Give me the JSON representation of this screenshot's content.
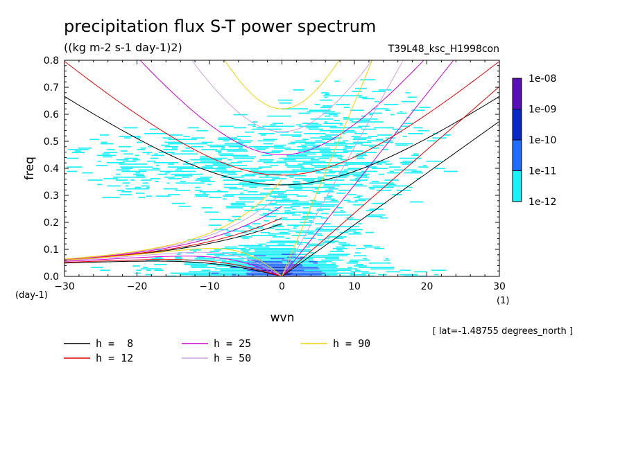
{
  "title": "precipitation flux S-T power spectrum",
  "units": "((kg m-2 s-1 day-1)2)",
  "dataset": "T39L48_ksc_H1998con",
  "lat_note": "[ lat=-1.48755 degrees_north ]",
  "colorbar": {
    "labels": [
      "1e-08",
      "1e-09",
      "1e-10",
      "1e-11",
      "1e-12"
    ],
    "colors": [
      "#5a0fb4",
      "#0a28c8",
      "#1f6dff",
      "#19f0fa"
    ]
  },
  "chart_data": {
    "type": "heatmap",
    "xlabel": "wvn",
    "ylabel": "freq",
    "x_unit": "(1)",
    "y_unit": "(day-1)",
    "xlim": [
      -30,
      30
    ],
    "ylim": [
      0,
      0.8
    ],
    "x_ticks": [
      -30,
      -20,
      -10,
      0,
      10,
      20,
      30
    ],
    "y_ticks": [
      0.0,
      0.1,
      0.2,
      0.3,
      0.4,
      0.5,
      0.6,
      0.7,
      0.8
    ],
    "y_tick_labels": [
      "0.0",
      "0.1",
      "0.2",
      "0.3",
      "0.4",
      "0.5",
      "0.6",
      "0.7",
      "0.8"
    ],
    "series": [
      {
        "name": "h =  8",
        "h": 8,
        "color": "#000000"
      },
      {
        "name": "h = 12",
        "h": 12,
        "color": "#e60000"
      },
      {
        "name": "h = 25",
        "h": 25,
        "color": "#d200d2"
      },
      {
        "name": "h = 50",
        "h": 50,
        "color": "#d2a0e6"
      },
      {
        "name": "h = 90",
        "h": 90,
        "color": "#f5d200"
      }
    ]
  }
}
